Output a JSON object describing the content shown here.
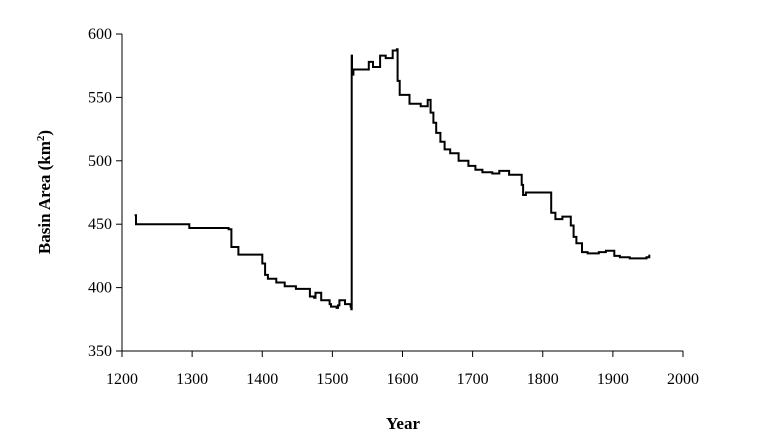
{
  "chart_data": {
    "type": "line",
    "title": "",
    "xlabel": "Year",
    "ylabel": "Basin Area (km",
    "ylabel_superscript": "2",
    "ylabel_suffix": ")",
    "xlim": [
      1200,
      2000
    ],
    "ylim": [
      350,
      600
    ],
    "x_ticks": [
      1200,
      1300,
      1400,
      1500,
      1600,
      1700,
      1800,
      1900,
      2000
    ],
    "y_ticks": [
      350,
      400,
      450,
      500,
      550,
      600
    ],
    "grid": false,
    "legend": "none",
    "line_color": "#000000",
    "series": [
      {
        "step": true,
        "x": [
          1218,
          1220,
          1296,
          1352,
          1356,
          1366,
          1400,
          1404,
          1408,
          1420,
          1432,
          1448,
          1468,
          1474,
          1476,
          1484,
          1496,
          1498,
          1506,
          1508,
          1510,
          1518,
          1526,
          1527,
          1527.5,
          1528,
          1530,
          1538,
          1552,
          1558,
          1568,
          1576,
          1586,
          1592,
          1593,
          1596,
          1610,
          1626,
          1636,
          1640,
          1644,
          1648,
          1654,
          1660,
          1668,
          1680,
          1694,
          1704,
          1714,
          1728,
          1738,
          1752,
          1770,
          1772,
          1776,
          1808,
          1812,
          1818,
          1828,
          1840,
          1844,
          1848,
          1856,
          1864,
          1880,
          1890,
          1902,
          1910,
          1924,
          1948,
          1952
        ],
        "y": [
          457,
          450,
          447,
          446,
          432,
          426,
          419,
          410,
          407,
          404,
          401,
          399,
          393,
          392,
          396,
          390,
          387,
          385,
          384,
          386,
          390,
          387,
          385,
          383,
          583,
          568,
          572,
          572,
          578,
          574,
          583,
          581,
          587,
          588,
          563,
          552,
          545,
          543,
          548,
          538,
          530,
          522,
          515,
          509,
          506,
          500,
          496,
          493,
          491,
          490,
          492,
          489,
          481,
          473,
          475,
          475,
          459,
          454,
          456,
          449,
          440,
          435,
          428,
          427,
          428,
          429,
          425,
          424,
          423,
          424,
          426
        ]
      }
    ]
  }
}
